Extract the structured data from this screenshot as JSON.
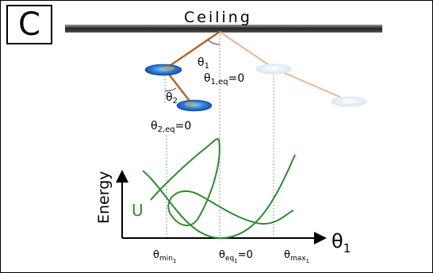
{
  "panel_label": "C",
  "ceiling_label": "Ceiling",
  "angles": {
    "theta1": "θ",
    "theta1_sub": "1",
    "theta1_eq": "θ",
    "theta1_eq_sub": "1,eq",
    "theta1_eq_val": "=0",
    "theta2": "θ",
    "theta2_sub": "2",
    "theta2_eq": "θ",
    "theta2_eq_sub": "2,eq",
    "theta2_eq_val": "=0"
  },
  "graph": {
    "ylabel": "Energy",
    "curve_label": "U",
    "xlabel": "θ",
    "xlabel_sub": "1",
    "tick_min": "θ",
    "tick_min_sub": "min",
    "tick_min_subsub": "1",
    "tick_eq": "θ",
    "tick_eq_sub": "eq",
    "tick_eq_subsub": "1",
    "tick_eq_val": "=0",
    "tick_max": "θ",
    "tick_max_sub": "max",
    "tick_max_subsub": "1"
  },
  "colors": {
    "curve": "#2e8b2e",
    "pendulum_rod": "#b5652a",
    "pendulum_rod_faded": "#e6b89a",
    "axis": "#000000"
  }
}
